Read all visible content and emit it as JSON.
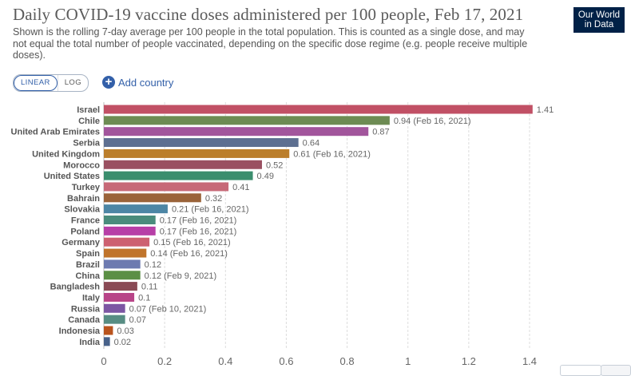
{
  "title": "Daily COVID-19 vaccine doses administered per 100 people, Feb 17, 2021",
  "subtitle": "Shown is the rolling 7-day average per 100 people in the total population. This is counted as a single dose, and may not equal the total number of people vaccinated, depending on the specific dose regime (e.g. people receive multiple doses).",
  "logo": {
    "line1": "Our World",
    "line2": "in Data"
  },
  "controls": {
    "linear_label": "LINEAR",
    "log_label": "LOG",
    "add_country_label": "Add country",
    "add_icon": "plus-circle-icon"
  },
  "chart_data": {
    "type": "bar",
    "orientation": "horizontal",
    "title": "Daily COVID-19 vaccine doses administered per 100 people, Feb 17, 2021",
    "xlim": [
      0,
      1.4
    ],
    "xticks": [
      0,
      0.2,
      0.4,
      0.6,
      0.8,
      1,
      1.2,
      1.4
    ],
    "xtick_labels": [
      "0",
      "0.2",
      "0.4",
      "0.6",
      "0.8",
      "1",
      "1.2",
      "1.4"
    ],
    "grid": true,
    "categories": [
      "Israel",
      "Chile",
      "United Arab Emirates",
      "Serbia",
      "United Kingdom",
      "Morocco",
      "United States",
      "Turkey",
      "Bahrain",
      "Slovakia",
      "France",
      "Poland",
      "Germany",
      "Spain",
      "Brazil",
      "China",
      "Bangladesh",
      "Italy",
      "Russia",
      "Canada",
      "Indonesia",
      "India"
    ],
    "values": [
      1.41,
      0.94,
      0.87,
      0.64,
      0.61,
      0.52,
      0.49,
      0.41,
      0.32,
      0.21,
      0.17,
      0.17,
      0.15,
      0.14,
      0.12,
      0.12,
      0.11,
      0.1,
      0.07,
      0.07,
      0.03,
      0.02
    ],
    "value_labels": [
      "1.41",
      "0.94 (Feb 16, 2021)",
      "0.87",
      "0.64",
      "0.61 (Feb 16, 2021)",
      "0.52",
      "0.49",
      "0.41",
      "0.32",
      "0.21 (Feb 16, 2021)",
      "0.17 (Feb 16, 2021)",
      "0.17 (Feb 16, 2021)",
      "0.15 (Feb 16, 2021)",
      "0.14 (Feb 16, 2021)",
      "0.12",
      "0.12 (Feb 9, 2021)",
      "0.11",
      "0.1",
      "0.07 (Feb 10, 2021)",
      "0.07",
      "0.03",
      "0.02"
    ],
    "colors": [
      "#c15065",
      "#6d8b53",
      "#a2559c",
      "#5d6f91",
      "#bb7e2b",
      "#9a5061",
      "#3b8e6e",
      "#c76977",
      "#9a6339",
      "#4d86a5",
      "#4a8c7c",
      "#b73fa7",
      "#cd6171",
      "#c0742b",
      "#6d7ab0",
      "#5b8f45",
      "#8a4a55",
      "#b84488",
      "#7c56a3",
      "#578d83",
      "#b9541e",
      "#48628a"
    ]
  }
}
